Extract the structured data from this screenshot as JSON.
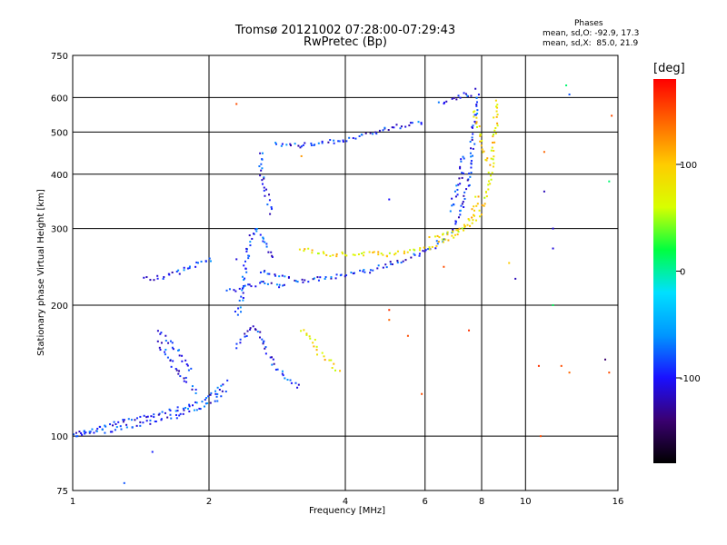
{
  "chart_data": {
    "type": "scatter",
    "title": "Tromsø 20121002 07:28:00-07:29:43",
    "subtitle": "RwPretec (Bp)",
    "xlabel": "Frequency [MHz]",
    "ylabel": "Stationary phase Virtual Height [km]",
    "x_scale": "log",
    "y_scale": "log",
    "xlim": [
      1,
      16
    ],
    "ylim": [
      75,
      750
    ],
    "x_ticks": [
      1,
      2,
      4,
      6,
      8,
      10,
      16
    ],
    "y_ticks": [
      75,
      100,
      200,
      300,
      400,
      500,
      600,
      750
    ],
    "grid": true,
    "phase_summary": {
      "heading": "Phases",
      "o_mode": "mean, sd,O: -92.9, 17.3",
      "x_mode": "mean, sd,X:  85.0, 21.9"
    },
    "colorbar": {
      "unit": "[deg]",
      "range": [
        -180,
        180
      ],
      "ticks": [
        100,
        0,
        -100
      ],
      "colors": [
        "#000000",
        "#3a0070",
        "#1a10ff",
        "#0096ff",
        "#00e0ff",
        "#00ff40",
        "#d8ff00",
        "#ffcc00",
        "#ff6600",
        "#ff0000"
      ]
    },
    "series": [
      {
        "name": "O-mode",
        "phase_deg": -92.9,
        "traces": [
          [
            [
              1.0,
              100
            ],
            [
              1.2,
              106
            ],
            [
              1.5,
              112
            ],
            [
              1.8,
              117
            ],
            [
              2.0,
              122
            ],
            [
              2.1,
              128
            ],
            [
              2.2,
              135
            ]
          ],
          [
            [
              1.0,
              101
            ],
            [
              1.2,
              103
            ],
            [
              1.5,
              108
            ],
            [
              1.7,
              112
            ],
            [
              2.0,
              118
            ],
            [
              2.2,
              128
            ]
          ],
          [
            [
              1.45,
              230
            ],
            [
              1.6,
              232
            ],
            [
              1.75,
              240
            ],
            [
              1.9,
              250
            ],
            [
              2.05,
              258
            ]
          ],
          [
            [
              1.55,
              165
            ],
            [
              1.6,
              155
            ],
            [
              1.65,
              150
            ],
            [
              1.7,
              140
            ],
            [
              1.8,
              132
            ],
            [
              1.9,
              125
            ]
          ],
          [
            [
              1.55,
              175
            ],
            [
              1.62,
              165
            ],
            [
              1.68,
              160
            ],
            [
              1.75,
              150
            ],
            [
              1.85,
              140
            ]
          ],
          [
            [
              2.3,
              190
            ],
            [
              2.35,
              200
            ],
            [
              2.4,
              240
            ],
            [
              2.45,
              280
            ],
            [
              2.55,
              300
            ],
            [
              2.7,
              270
            ],
            [
              2.8,
              255
            ]
          ],
          [
            [
              2.3,
              160
            ],
            [
              2.4,
              170
            ],
            [
              2.5,
              180
            ],
            [
              2.6,
              170
            ],
            [
              2.7,
              155
            ],
            [
              2.8,
              145
            ],
            [
              3.0,
              135
            ],
            [
              3.2,
              128
            ]
          ],
          [
            [
              2.6,
              450
            ],
            [
              2.62,
              400
            ],
            [
              2.65,
              380
            ],
            [
              2.7,
              350
            ],
            [
              2.75,
              320
            ]
          ],
          [
            [
              2.8,
              470
            ],
            [
              3.0,
              468
            ],
            [
              3.2,
              465
            ],
            [
              3.5,
              470
            ],
            [
              4.0,
              480
            ],
            [
              4.5,
              495
            ],
            [
              5.0,
              510
            ],
            [
              5.5,
              520
            ],
            [
              6.0,
              530
            ]
          ],
          [
            [
              2.6,
              240
            ],
            [
              2.9,
              233
            ],
            [
              3.2,
              228
            ],
            [
              3.6,
              230
            ],
            [
              4.0,
              234
            ],
            [
              4.5,
              240
            ],
            [
              5.0,
              248
            ],
            [
              5.5,
              255
            ],
            [
              6.0,
              265
            ],
            [
              6.5,
              280
            ],
            [
              7.0,
              305
            ],
            [
              7.3,
              340
            ],
            [
              7.5,
              390
            ],
            [
              7.6,
              450
            ],
            [
              7.7,
              520
            ],
            [
              7.8,
              580
            ],
            [
              7.85,
              630
            ]
          ],
          [
            [
              2.2,
              215
            ],
            [
              2.4,
              220
            ],
            [
              2.6,
              225
            ],
            [
              2.8,
              222
            ],
            [
              3.0,
              220
            ]
          ],
          [
            [
              6.5,
              580
            ],
            [
              7.0,
              600
            ],
            [
              7.4,
              610
            ],
            [
              7.6,
              595
            ]
          ],
          [
            [
              6.8,
              330
            ],
            [
              7.0,
              360
            ],
            [
              7.2,
              400
            ],
            [
              7.3,
              450
            ]
          ]
        ]
      },
      {
        "name": "X-mode",
        "phase_deg": 85.0,
        "traces": [
          [
            [
              3.2,
              270
            ],
            [
              3.5,
              262
            ],
            [
              4.0,
              262
            ],
            [
              4.5,
              262
            ],
            [
              5.0,
              262
            ],
            [
              5.5,
              265
            ],
            [
              6.0,
              270
            ],
            [
              6.5,
              280
            ],
            [
              7.0,
              290
            ],
            [
              7.5,
              305
            ],
            [
              8.0,
              330
            ],
            [
              8.3,
              380
            ],
            [
              8.5,
              450
            ],
            [
              8.6,
              520
            ],
            [
              8.6,
              600
            ]
          ],
          [
            [
              3.2,
              175
            ],
            [
              3.4,
              165
            ],
            [
              3.5,
              155
            ],
            [
              3.7,
              148
            ],
            [
              3.9,
              140
            ]
          ],
          [
            [
              6.2,
              290
            ],
            [
              6.7,
              290
            ],
            [
              7.2,
              298
            ],
            [
              7.6,
              320
            ],
            [
              7.9,
              360
            ]
          ],
          [
            [
              7.7,
              560
            ],
            [
              7.9,
              500
            ],
            [
              8.1,
              460
            ],
            [
              8.2,
              420
            ]
          ]
        ]
      }
    ],
    "isolated_points": [
      [
        1.3,
        78,
        -80
      ],
      [
        1.5,
        92,
        -95
      ],
      [
        1.7,
        110,
        -90
      ],
      [
        2.3,
        580,
        150
      ],
      [
        2.3,
        255,
        -110
      ],
      [
        3.2,
        440,
        120
      ],
      [
        5.0,
        350,
        -100
      ],
      [
        5.0,
        195,
        160
      ],
      [
        5.0,
        185,
        140
      ],
      [
        5.5,
        170,
        150
      ],
      [
        5.9,
        125,
        150
      ],
      [
        6.6,
        245,
        150
      ],
      [
        7.5,
        175,
        160
      ],
      [
        9.5,
        230,
        -120
      ],
      [
        11.0,
        450,
        140
      ],
      [
        11.0,
        365,
        -120
      ],
      [
        11.5,
        300,
        -110
      ],
      [
        11.5,
        270,
        -110
      ],
      [
        12.3,
        640,
        10
      ],
      [
        12.5,
        610,
        -80
      ],
      [
        11.5,
        200,
        15
      ],
      [
        12.0,
        145,
        150
      ],
      [
        12.5,
        140,
        140
      ],
      [
        15.5,
        545,
        150
      ],
      [
        15.3,
        385,
        10
      ],
      [
        15.0,
        150,
        -140
      ],
      [
        15.3,
        140,
        150
      ],
      [
        10.8,
        100,
        150
      ],
      [
        10.7,
        145,
        160
      ],
      [
        9.2,
        250,
        100
      ]
    ]
  }
}
